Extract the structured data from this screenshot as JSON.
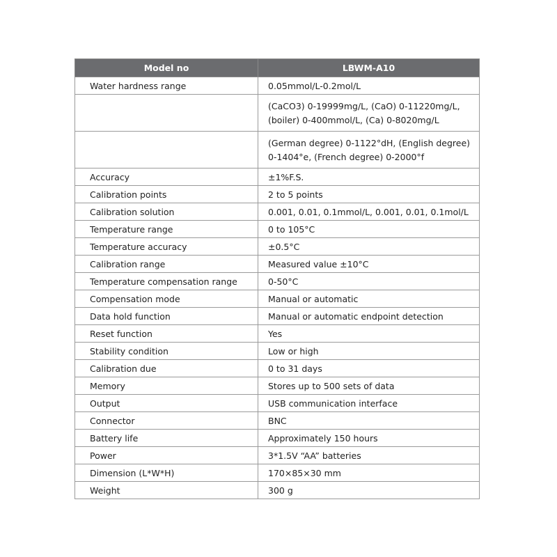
{
  "header": {
    "col1": "Model no",
    "col2": "LBWM-A10"
  },
  "rows": [
    {
      "label": "Water hardness range",
      "value": "0.05mmol/L-0.2mol/L"
    },
    {
      "label": "",
      "value": "(CaCO3) 0-19999mg/L, (CaO) 0-11220mg/L, (boiler) 0-400mmol/L, (Ca) 0-8020mg/L"
    },
    {
      "label": "",
      "value": "(German degree) 0-1122°dH, (English degree) 0-1404°e, (French degree) 0-2000°f"
    },
    {
      "label": "Accuracy",
      "value": "±1%F.S."
    },
    {
      "label": "Calibration points",
      "value": "2 to 5 points"
    },
    {
      "label": "Calibration solution",
      "value": "0.001, 0.01, 0.1mmol/L, 0.001, 0.01, 0.1mol/L"
    },
    {
      "label": "Temperature range",
      "value": "0 to 105°C"
    },
    {
      "label": "Temperature accuracy",
      "value": "±0.5°C"
    },
    {
      "label": "Calibration range",
      "value": "Measured value ±10°C"
    },
    {
      "label": "Temperature compensation range",
      "value": "0-50°C"
    },
    {
      "label": "Compensation mode",
      "value": "Manual or automatic"
    },
    {
      "label": "Data hold function",
      "value": "Manual or automatic endpoint detection"
    },
    {
      "label": "Reset function",
      "value": "Yes"
    },
    {
      "label": "Stability condition",
      "value": "Low or high"
    },
    {
      "label": "Calibration due",
      "value": "0 to 31 days"
    },
    {
      "label": "Memory",
      "value": "Stores up to 500 sets of data"
    },
    {
      "label": "Output",
      "value": "USB communication interface"
    },
    {
      "label": "Connector",
      "value": "BNC"
    },
    {
      "label": "Battery life",
      "value": "Approximately 150 hours"
    },
    {
      "label": "Power",
      "value": "3*1.5V “AA” batteries"
    },
    {
      "label": "Dimension (L*W*H)",
      "value": "170×85×30 mm"
    },
    {
      "label": "Weight",
      "value": "300 g"
    }
  ],
  "colors": {
    "header_bg": "#6b6c6f",
    "header_text": "#ffffff",
    "border": "#9a9a9a"
  }
}
